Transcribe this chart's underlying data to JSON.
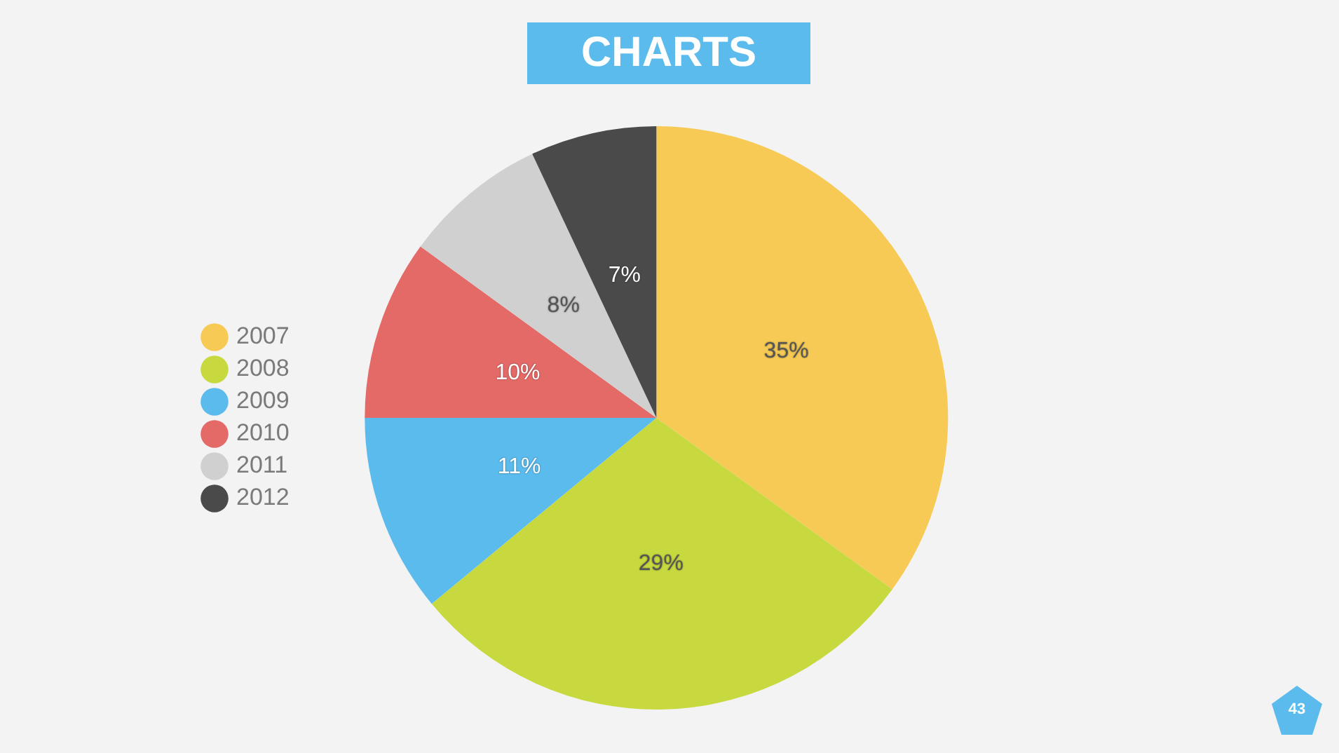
{
  "chart_data": {
    "type": "pie",
    "title": "CHARTS",
    "categories": [
      "2007",
      "2008",
      "2009",
      "2010",
      "2011",
      "2012"
    ],
    "values": [
      35,
      29,
      11,
      10,
      8,
      7
    ],
    "colors": [
      "#f6ca55",
      "#c8d93f",
      "#5bbbed",
      "#e46a67",
      "#d0d0d0",
      "#4a4a4a"
    ],
    "value_labels": [
      "35%",
      "29%",
      "11%",
      "10%",
      "8%",
      "7%"
    ],
    "legend": "left",
    "annotations": [
      "43"
    ]
  }
}
